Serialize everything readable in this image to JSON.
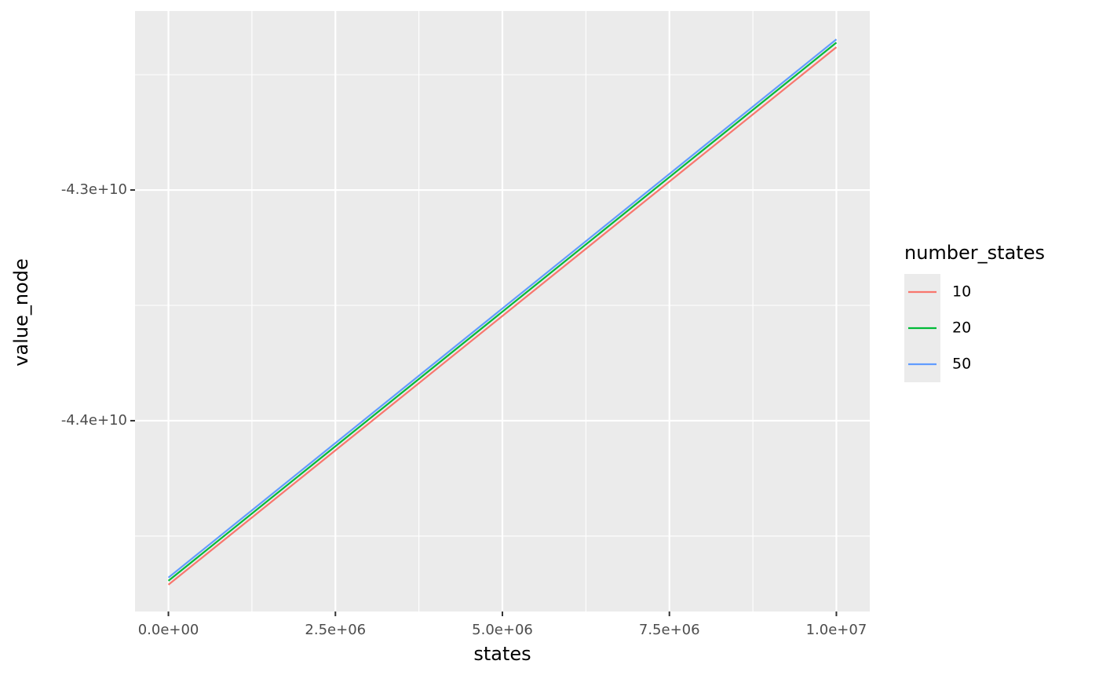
{
  "chart_data": {
    "type": "line",
    "x_label": "states",
    "y_label": "value_node",
    "x": [
      0,
      10000000
    ],
    "series": [
      {
        "name": "10",
        "color": "#F8766D",
        "values": [
          -44711000000,
          -42381000000
        ]
      },
      {
        "name": "20",
        "color": "#00BA38",
        "values": [
          -44694000000,
          -42361000000
        ]
      },
      {
        "name": "50",
        "color": "#619CFF",
        "values": [
          -44680000000,
          -42347000000
        ]
      }
    ],
    "xlim": [
      -500000,
      10500000
    ],
    "ylim": [
      -44827000000,
      -42224000000
    ],
    "xticks": [
      {
        "value": 0,
        "label": "0.0e+00"
      },
      {
        "value": 2500000,
        "label": "2.5e+06"
      },
      {
        "value": 5000000,
        "label": "5.0e+06"
      },
      {
        "value": 7500000,
        "label": "7.5e+06"
      },
      {
        "value": 10000000,
        "label": "1.0e+07"
      }
    ],
    "yticks": [
      {
        "value": -44000000000,
        "label": "-4.4e+10"
      },
      {
        "value": -43000000000,
        "label": "-4.3e+10"
      }
    ],
    "minor_xticks": [
      1250000,
      3750000,
      6250000,
      8750000
    ],
    "minor_yticks": [
      -44500000000,
      -43500000000,
      -42500000000
    ],
    "grid": true,
    "legend_title": "number_states",
    "legend_position": "right"
  }
}
